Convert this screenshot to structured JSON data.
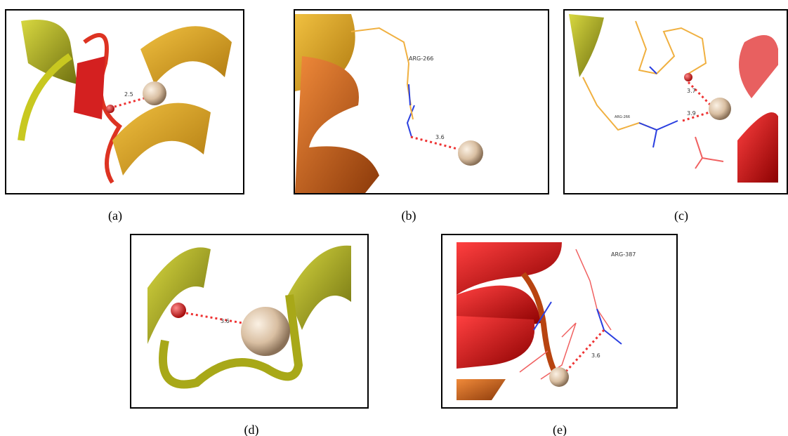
{
  "panels": [
    {
      "label": "(a)",
      "annotations": [
        "2.5"
      ]
    },
    {
      "label": "(b)",
      "annotations": [
        "ARG-266",
        "3.6"
      ]
    },
    {
      "label": "(c)",
      "annotations": [
        "3.7",
        "3.9",
        "ARG-266"
      ]
    },
    {
      "label": "(d)",
      "annotations": [
        "3.6"
      ]
    },
    {
      "label": "(e)",
      "annotations": [
        "ARG-387",
        "3.6"
      ]
    }
  ]
}
